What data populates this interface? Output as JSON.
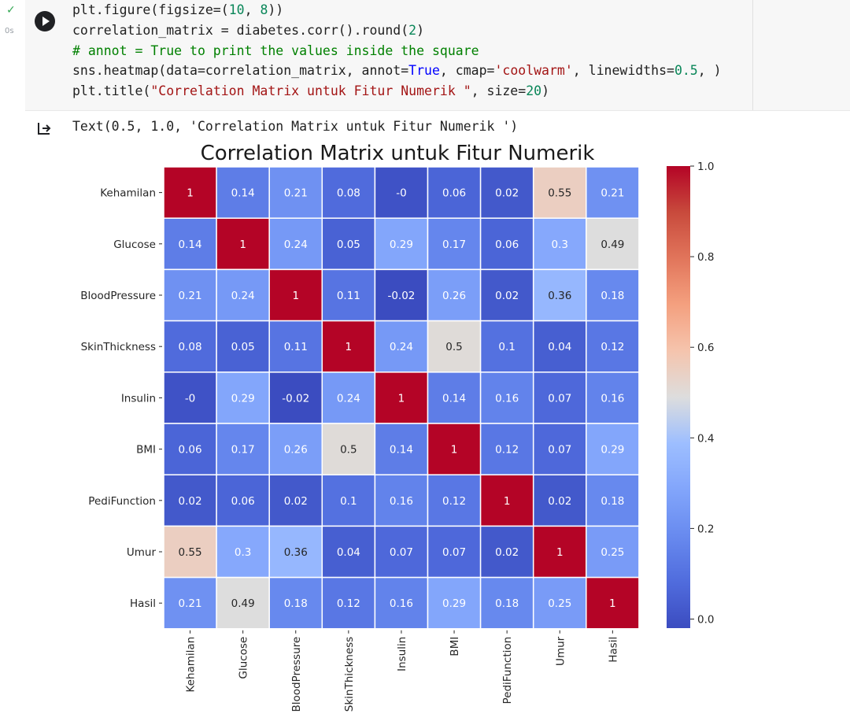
{
  "cell": {
    "status_check": "✓",
    "status_time": "0s",
    "run_button_icon": "play-icon",
    "code_lines": [
      [
        {
          "t": "plt.figure(figsize=("
        },
        {
          "t": "10",
          "c": "num"
        },
        {
          "t": ", "
        },
        {
          "t": "8",
          "c": "num"
        },
        {
          "t": "))"
        }
      ],
      [
        {
          "t": "correlation_matrix = diabetes.corr().round("
        },
        {
          "t": "2",
          "c": "num"
        },
        {
          "t": ")"
        }
      ],
      [
        {
          "t": "# annot = True to print the values inside the square",
          "c": "cm"
        }
      ],
      [
        {
          "t": "sns.heatmap(data=correlation_matrix, annot="
        },
        {
          "t": "True",
          "c": "kw"
        },
        {
          "t": ", cmap="
        },
        {
          "t": "'coolwarm'",
          "c": "str"
        },
        {
          "t": ", linewidths="
        },
        {
          "t": "0.5",
          "c": "num"
        },
        {
          "t": ", )"
        }
      ],
      [
        {
          "t": "plt.title("
        },
        {
          "t": "\"Correlation Matrix untuk Fitur Numerik \"",
          "c": "str"
        },
        {
          "t": ", size="
        },
        {
          "t": "20",
          "c": "num"
        },
        {
          "t": ")"
        }
      ]
    ],
    "output_icon": "output-arrow-icon",
    "output_text": "Text(0.5, 1.0, 'Correlation Matrix untuk Fitur Numerik ')"
  },
  "chart_data": {
    "type": "heatmap",
    "title": "Correlation Matrix untuk Fitur Numerik",
    "labels": [
      "Kehamilan",
      "Glucose",
      "BloodPressure",
      "SkinThickness",
      "Insulin",
      "BMI",
      "PediFunction",
      "Umur",
      "Hasil"
    ],
    "values": [
      [
        1,
        0.14,
        0.21,
        0.08,
        0,
        0.06,
        0.02,
        0.55,
        0.21
      ],
      [
        0.14,
        1,
        0.24,
        0.05,
        0.29,
        0.17,
        0.06,
        0.3,
        0.49
      ],
      [
        0.21,
        0.24,
        1,
        0.11,
        -0.02,
        0.26,
        0.02,
        0.36,
        0.18
      ],
      [
        0.08,
        0.05,
        0.11,
        1,
        0.24,
        0.5,
        0.1,
        0.04,
        0.12
      ],
      [
        0,
        0.29,
        -0.02,
        0.24,
        1,
        0.14,
        0.16,
        0.07,
        0.16
      ],
      [
        0.06,
        0.17,
        0.26,
        0.5,
        0.14,
        1,
        0.12,
        0.07,
        0.29
      ],
      [
        0.02,
        0.06,
        0.02,
        0.1,
        0.16,
        0.12,
        1,
        0.02,
        0.18
      ],
      [
        0.55,
        0.3,
        0.36,
        0.04,
        0.07,
        0.07,
        0.02,
        1,
        0.25
      ],
      [
        0.21,
        0.49,
        0.18,
        0.12,
        0.16,
        0.29,
        0.18,
        0.25,
        1
      ]
    ],
    "annotations": [
      [
        "1",
        "0.14",
        "0.21",
        "0.08",
        "-0",
        "0.06",
        "0.02",
        "0.55",
        "0.21"
      ],
      [
        "0.14",
        "1",
        "0.24",
        "0.05",
        "0.29",
        "0.17",
        "0.06",
        "0.3",
        "0.49"
      ],
      [
        "0.21",
        "0.24",
        "1",
        "0.11",
        "-0.02",
        "0.26",
        "0.02",
        "0.36",
        "0.18"
      ],
      [
        "0.08",
        "0.05",
        "0.11",
        "1",
        "0.24",
        "0.5",
        "0.1",
        "0.04",
        "0.12"
      ],
      [
        "-0",
        "0.29",
        "-0.02",
        "0.24",
        "1",
        "0.14",
        "0.16",
        "0.07",
        "0.16"
      ],
      [
        "0.06",
        "0.17",
        "0.26",
        "0.5",
        "0.14",
        "1",
        "0.12",
        "0.07",
        "0.29"
      ],
      [
        "0.02",
        "0.06",
        "0.02",
        "0.1",
        "0.16",
        "0.12",
        "1",
        "0.02",
        "0.18"
      ],
      [
        "0.55",
        "0.3",
        "0.36",
        "0.04",
        "0.07",
        "0.07",
        "0.02",
        "1",
        "0.25"
      ],
      [
        "0.21",
        "0.49",
        "0.18",
        "0.12",
        "0.16",
        "0.29",
        "0.18",
        "0.25",
        "1"
      ]
    ],
    "colormap": "coolwarm",
    "vmin": -0.02,
    "vmax": 1.0,
    "colorbar_ticks": [
      "0.0",
      "0.2",
      "0.4",
      "0.6",
      "0.8",
      "1.0"
    ],
    "colorbar_tick_values": [
      0.0,
      0.2,
      0.4,
      0.6,
      0.8,
      1.0
    ],
    "grid_line_color": "#ffffff"
  }
}
